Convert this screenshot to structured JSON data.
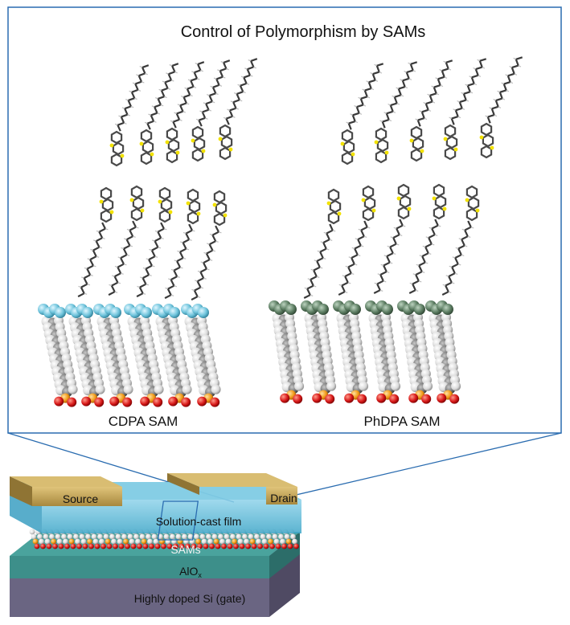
{
  "figure": {
    "title": "Control of Polymorphism by SAMs",
    "panels": [
      {
        "label": "CDPA SAM",
        "head_color": "#6fc4dc"
      },
      {
        "label": "PhDPA SAM",
        "head_color": "#5d7e63"
      }
    ],
    "device": {
      "source_label": "Source",
      "drain_label": "Drain",
      "film_label": "Solution-cast film",
      "sams_label": "SAMs",
      "oxide_label_main": "AlO",
      "oxide_label_sub": "x",
      "gate_label": "Highly doped Si (gate)"
    },
    "colors": {
      "frame": "#2a6cb0",
      "electrode": "#c7a85e",
      "film": "#5bb9d6",
      "oxide": "#3c8f8a",
      "gate": "#6f6a84",
      "sulfur": "#f2e200",
      "phosphorus": "#f29c1a",
      "oxygen": "#d81a1a"
    }
  }
}
